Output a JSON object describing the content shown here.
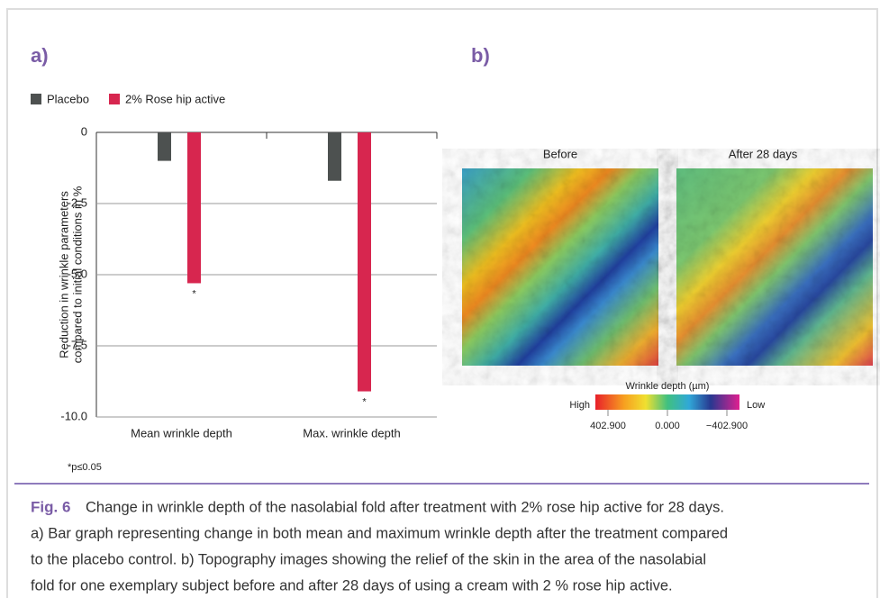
{
  "panel_labels": [
    "a)",
    "b)"
  ],
  "chart_data": {
    "type": "bar",
    "y_label": [
      "Reduction in wrinkle parameters",
      "compared to initial conditions in %"
    ],
    "categories": [
      "Mean wrinkle depth",
      "Max. wrinkle depth"
    ],
    "series": [
      {
        "name": "Placebo",
        "color": "#4d5150",
        "values": [
          -1.0,
          -1.7
        ]
      },
      {
        "name": "2% Rose hip active",
        "color": "#d7264f",
        "values": [
          -5.3,
          -9.1
        ],
        "markers": [
          "*",
          "*"
        ]
      }
    ],
    "ylim": [
      -10,
      0
    ],
    "yticks": [
      0,
      -2.5,
      {
        "value": -5,
        "label": "-5.0"
      },
      -7.5,
      {
        "value": -10,
        "label": "-10.0"
      }
    ],
    "grid": true,
    "footnote": "*p≤0.05"
  },
  "topography": {
    "titles": [
      "Before",
      "After 28 days"
    ],
    "colorbar": {
      "title": "Wrinkle depth (µm)",
      "high": "High",
      "low": "Low",
      "ticks": [
        "402.900",
        "0.000",
        "−402.900"
      ]
    }
  },
  "caption": {
    "label": "Fig. 6",
    "lines": [
      "Change in wrinkle depth of the nasolabial fold after treatment with 2% rose hip active for 28 days.",
      "a) Bar graph representing change in both mean and maximum wrinkle depth after the treatment compared",
      "to the placebo control. b) Topography images showing the relief of the skin in the area of the nasolabial",
      "fold for one exemplary subject before and after 28 days of using a cream with 2 % rose hip active."
    ]
  }
}
